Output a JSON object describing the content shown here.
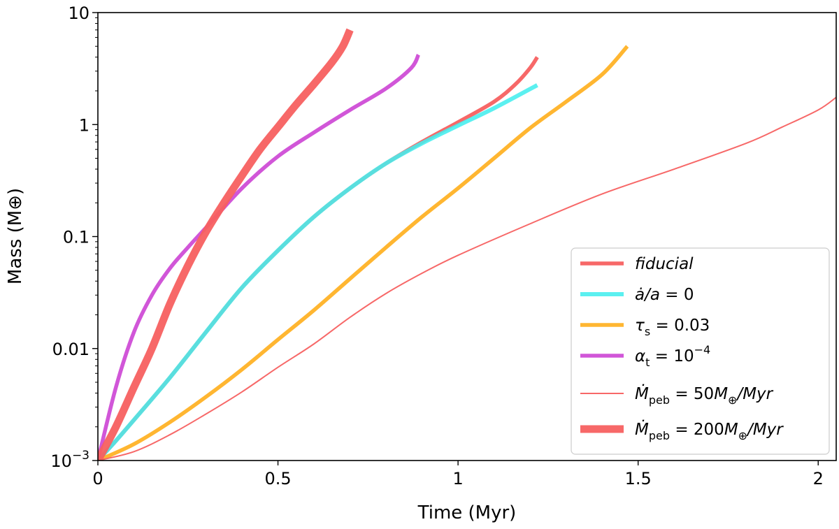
{
  "chart_data": {
    "type": "line",
    "title": "",
    "xlabel": "Time (Myr)",
    "ylabel": "Mass (M⊕)",
    "xlim": [
      0,
      2.05
    ],
    "ylim": [
      0.001,
      10
    ],
    "yscale": "log",
    "grid": false,
    "legend_position": "lower-right",
    "x_ticks": [
      {
        "value": 0,
        "label": "0"
      },
      {
        "value": 0.5,
        "label": "0.5"
      },
      {
        "value": 1,
        "label": "1"
      },
      {
        "value": 1.5,
        "label": "1.5"
      },
      {
        "value": 2,
        "label": "2"
      }
    ],
    "y_ticks": [
      {
        "value": 0.001,
        "base": "10",
        "exp": "−3"
      },
      {
        "value": 0.01,
        "label": "0.01"
      },
      {
        "value": 0.1,
        "label": "0.1"
      },
      {
        "value": 1,
        "label": "1"
      },
      {
        "value": 10,
        "label": "10"
      }
    ],
    "series": [
      {
        "name": "fiducial",
        "legend": [
          {
            "t": "fiducial",
            "i": true
          }
        ],
        "color": "#f76060",
        "width": 5.5,
        "opacity": 0.95,
        "x": [
          0,
          0.05,
          0.1,
          0.2,
          0.3,
          0.4,
          0.5,
          0.6,
          0.7,
          0.8,
          0.9,
          1.0,
          1.1,
          1.16,
          1.2,
          1.22
        ],
        "y": [
          0.001,
          0.0015,
          0.0023,
          0.0055,
          0.014,
          0.035,
          0.075,
          0.15,
          0.27,
          0.45,
          0.7,
          1.05,
          1.6,
          2.3,
          3.2,
          4.0
        ]
      },
      {
        "name": "ȧ/a = 0",
        "legend": [
          {
            "t": "ȧ/a",
            "i": true
          },
          {
            "t": " = 0"
          }
        ],
        "color": "#44eeee",
        "width": 6,
        "opacity": 0.88,
        "x": [
          0,
          0.05,
          0.1,
          0.2,
          0.3,
          0.4,
          0.5,
          0.6,
          0.7,
          0.8,
          0.9,
          1.0,
          1.1,
          1.22
        ],
        "y": [
          0.001,
          0.0015,
          0.0023,
          0.0055,
          0.014,
          0.035,
          0.075,
          0.15,
          0.27,
          0.45,
          0.68,
          0.98,
          1.4,
          2.25
        ]
      },
      {
        "name": "τs = 0.03",
        "legend": [
          {
            "t": "τ",
            "i": true
          },
          {
            "t": "s",
            "sub": true
          },
          {
            "t": " = 0.03"
          }
        ],
        "color": "#ffb020",
        "width": 5.5,
        "opacity": 0.92,
        "x": [
          0,
          0.1,
          0.2,
          0.3,
          0.4,
          0.5,
          0.6,
          0.7,
          0.8,
          0.9,
          1.0,
          1.1,
          1.2,
          1.3,
          1.4,
          1.47
        ],
        "y": [
          0.001,
          0.0014,
          0.0022,
          0.0037,
          0.0065,
          0.012,
          0.022,
          0.042,
          0.08,
          0.15,
          0.27,
          0.5,
          0.93,
          1.6,
          2.8,
          5.0
        ]
      },
      {
        "name": "αt = 10⁻⁴",
        "legend": [
          {
            "t": "α",
            "i": true
          },
          {
            "t": "t",
            "sub": true
          },
          {
            "t": " = 10"
          },
          {
            "t": "−4",
            "sup": true
          }
        ],
        "color": "#cc44d4",
        "width": 5.5,
        "opacity": 0.9,
        "x": [
          0,
          0.05,
          0.1,
          0.15,
          0.2,
          0.25,
          0.3,
          0.4,
          0.5,
          0.6,
          0.7,
          0.8,
          0.87,
          0.89
        ],
        "y": [
          0.001,
          0.0045,
          0.014,
          0.03,
          0.052,
          0.08,
          0.12,
          0.27,
          0.52,
          0.85,
          1.35,
          2.1,
          3.2,
          4.2
        ]
      },
      {
        "name": "Ṁpeb = 50M⊕/Myr",
        "legend": [
          {
            "t": "Ṁ",
            "i": true
          },
          {
            "t": "peb",
            "sub": true
          },
          {
            "t": " = 50"
          },
          {
            "t": "M",
            "i": true
          },
          {
            "t": "⊕",
            "sub": true
          },
          {
            "t": "/Myr",
            "i": true
          }
        ],
        "color": "#f76060",
        "width": 2,
        "opacity": 0.95,
        "x": [
          0,
          0.1,
          0.2,
          0.3,
          0.4,
          0.5,
          0.6,
          0.7,
          0.8,
          0.9,
          1.0,
          1.2,
          1.4,
          1.6,
          1.8,
          1.9,
          2.0,
          2.05
        ],
        "y": [
          0.001,
          0.0012,
          0.0017,
          0.0026,
          0.0041,
          0.0068,
          0.011,
          0.019,
          0.031,
          0.047,
          0.068,
          0.13,
          0.24,
          0.4,
          0.68,
          0.95,
          1.35,
          1.75
        ]
      },
      {
        "name": "Ṁpeb = 200M⊕/Myr",
        "legend": [
          {
            "t": "Ṁ",
            "i": true
          },
          {
            "t": "peb",
            "sub": true
          },
          {
            "t": " = 200"
          },
          {
            "t": "M",
            "i": true
          },
          {
            "t": "⊕",
            "sub": true
          },
          {
            "t": "/Myr",
            "i": true
          }
        ],
        "color": "#f76060",
        "width": 11,
        "opacity": 0.95,
        "x": [
          0,
          0.05,
          0.1,
          0.15,
          0.2,
          0.25,
          0.3,
          0.35,
          0.4,
          0.45,
          0.5,
          0.55,
          0.6,
          0.65,
          0.68,
          0.7
        ],
        "y": [
          0.001,
          0.002,
          0.0045,
          0.01,
          0.025,
          0.055,
          0.11,
          0.2,
          0.35,
          0.6,
          0.95,
          1.5,
          2.3,
          3.6,
          5.0,
          7.0
        ]
      }
    ]
  }
}
